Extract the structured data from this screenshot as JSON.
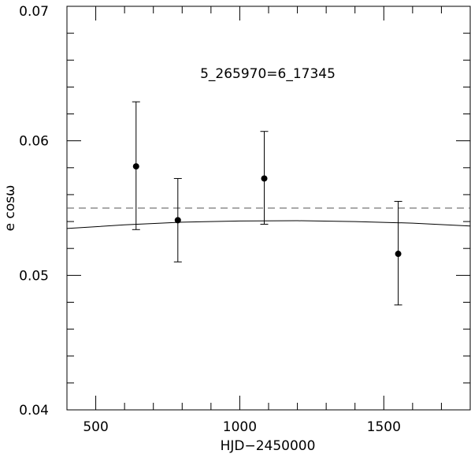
{
  "chart_data": {
    "type": "scatter",
    "title": "",
    "annotation": "5_265970=6_17345",
    "xlabel": "HJD−2450000",
    "ylabel": "e cosω",
    "xlim": [
      400,
      1800
    ],
    "ylim": [
      0.04,
      0.07
    ],
    "xticks": [
      500,
      1000,
      1500
    ],
    "yticks": [
      0.04,
      0.05,
      0.06,
      0.07
    ],
    "xtick_labels": [
      "500",
      "1000",
      "1500"
    ],
    "ytick_labels": [
      "0.04",
      "0.05",
      "0.06",
      "0.07"
    ],
    "x_minor_step": 100,
    "y_minor_step": 0.002,
    "grid": false,
    "points": [
      {
        "x": 640,
        "y": 0.0581,
        "err_low": 0.0047,
        "err_high": 0.0048
      },
      {
        "x": 785,
        "y": 0.0541,
        "err_low": 0.0031,
        "err_high": 0.0031
      },
      {
        "x": 1085,
        "y": 0.0572,
        "err_low": 0.0034,
        "err_high": 0.0035
      },
      {
        "x": 1550,
        "y": 0.0516,
        "err_low": 0.0038,
        "err_high": 0.0039
      }
    ],
    "reference_line": {
      "style": "dashed",
      "y": 0.055
    },
    "model_curve": {
      "style": "solid",
      "x": [
        400,
        600,
        800,
        1000,
        1200,
        1400,
        1600,
        1800
      ],
      "y": [
        0.05348,
        0.05375,
        0.05395,
        0.05404,
        0.05406,
        0.054,
        0.05388,
        0.05367
      ]
    }
  }
}
